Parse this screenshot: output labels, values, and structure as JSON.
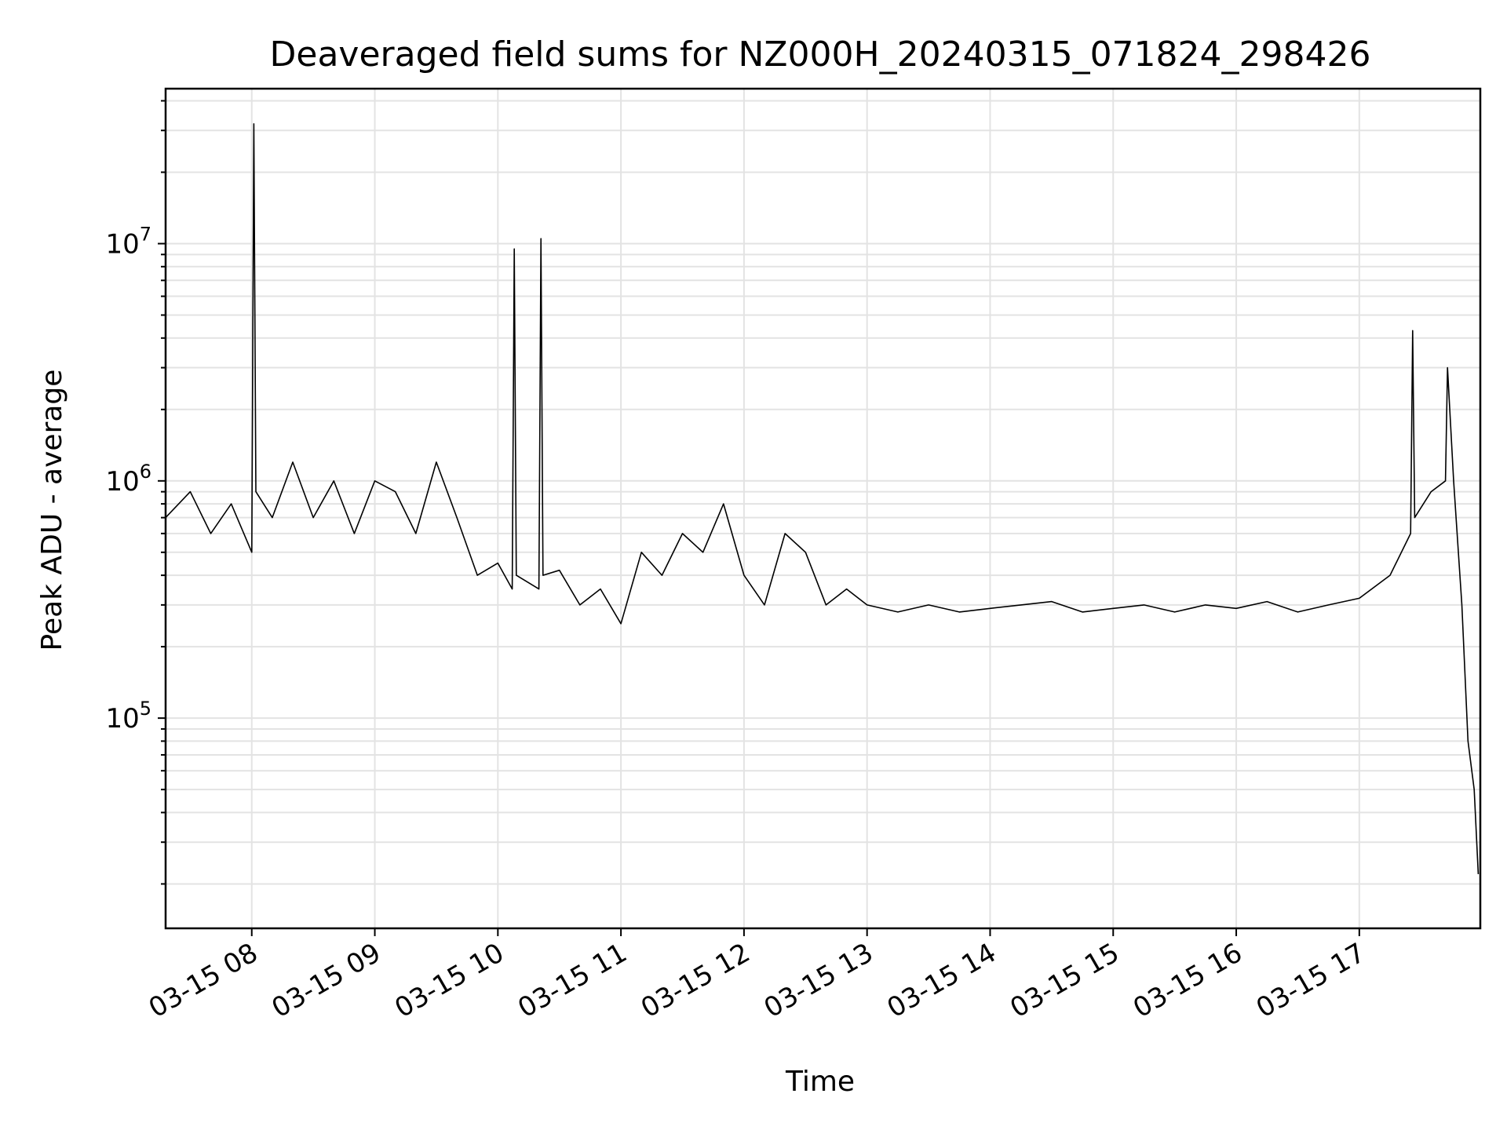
{
  "chart_data": {
    "type": "line",
    "title": "Deaveraged field sums for NZ000H_20240315_071824_298426",
    "xlabel": "Time",
    "ylabel": "Peak ADU - average",
    "yscale": "log",
    "ylim": [
      13000,
      45000000
    ],
    "xlim": [
      "03-15 07:18",
      "03-15 17:59"
    ],
    "grid": true,
    "line_color": "#000000",
    "x_ticks": [
      "03-15 08",
      "03-15 09",
      "03-15 10",
      "03-15 11",
      "03-15 12",
      "03-15 13",
      "03-15 14",
      "03-15 15",
      "03-15 16",
      "03-15 17"
    ],
    "y_ticks": [
      {
        "value": 100000,
        "base": "10",
        "exp": "5"
      },
      {
        "value": 1000000,
        "base": "10",
        "exp": "6"
      },
      {
        "value": 10000000,
        "base": "10",
        "exp": "7"
      }
    ],
    "series": [
      {
        "x": [
          "03-15 07:18",
          "03-15 07:30",
          "03-15 07:40",
          "03-15 07:50",
          "03-15 08:00",
          "03-15 08:01",
          "03-15 08:02",
          "03-15 08:10",
          "03-15 08:20",
          "03-15 08:30",
          "03-15 08:40",
          "03-15 08:50",
          "03-15 09:00",
          "03-15 09:10",
          "03-15 09:20",
          "03-15 09:30",
          "03-15 09:40",
          "03-15 09:50",
          "03-15 10:00",
          "03-15 10:07",
          "03-15 10:08",
          "03-15 10:09",
          "03-15 10:20",
          "03-15 10:21",
          "03-15 10:22",
          "03-15 10:30",
          "03-15 10:40",
          "03-15 10:50",
          "03-15 11:00",
          "03-15 11:10",
          "03-15 11:20",
          "03-15 11:30",
          "03-15 11:40",
          "03-15 11:50",
          "03-15 12:00",
          "03-15 12:10",
          "03-15 12:20",
          "03-15 12:30",
          "03-15 12:40",
          "03-15 12:50",
          "03-15 13:00",
          "03-15 13:15",
          "03-15 13:30",
          "03-15 13:45",
          "03-15 14:00",
          "03-15 14:15",
          "03-15 14:30",
          "03-15 14:45",
          "03-15 15:00",
          "03-15 15:15",
          "03-15 15:30",
          "03-15 15:45",
          "03-15 16:00",
          "03-15 16:15",
          "03-15 16:30",
          "03-15 16:45",
          "03-15 17:00",
          "03-15 17:15",
          "03-15 17:25",
          "03-15 17:26",
          "03-15 17:27",
          "03-15 17:35",
          "03-15 17:42",
          "03-15 17:43",
          "03-15 17:46",
          "03-15 17:50",
          "03-15 17:53",
          "03-15 17:56",
          "03-15 17:58"
        ],
        "y": [
          700000,
          900000,
          600000,
          800000,
          500000,
          32000000,
          900000,
          700000,
          1200000,
          700000,
          1000000,
          600000,
          1000000,
          900000,
          600000,
          1200000,
          700000,
          400000,
          450000,
          350000,
          9500000,
          400000,
          350000,
          10500000,
          400000,
          420000,
          300000,
          350000,
          250000,
          500000,
          400000,
          600000,
          500000,
          800000,
          400000,
          300000,
          600000,
          500000,
          300000,
          350000,
          300000,
          280000,
          300000,
          280000,
          290000,
          300000,
          310000,
          280000,
          290000,
          300000,
          280000,
          300000,
          290000,
          310000,
          280000,
          300000,
          320000,
          400000,
          600000,
          4300000,
          700000,
          900000,
          1000000,
          3000000,
          1000000,
          300000,
          80000,
          50000,
          22000
        ]
      }
    ]
  }
}
